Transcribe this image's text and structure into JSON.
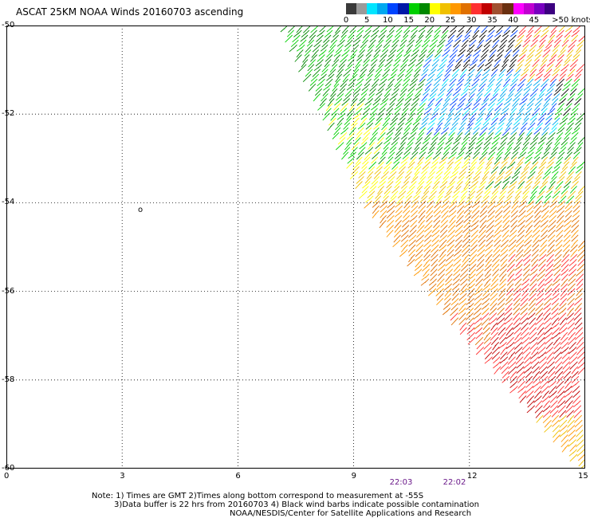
{
  "title": "ASCAT 25KM NOAA Winds 20160703 ascending",
  "legend": {
    "colors": [
      "#3a3a3a",
      "#9a9a9a",
      "#00e5ff",
      "#00a8f0",
      "#0044ff",
      "#0018a8",
      "#00d000",
      "#008800",
      "#ffff00",
      "#f0c000",
      "#ff9800",
      "#e07000",
      "#ff3030",
      "#c00000",
      "#a05030",
      "#6a2f10",
      "#ff00ff",
      "#c000d0",
      "#7800c0",
      "#3c0080"
    ],
    "labels": [
      "0",
      "5",
      "10",
      "15",
      "20",
      "25",
      "30",
      "35",
      "40",
      "45",
      ">50 knots"
    ]
  },
  "axes": {
    "lat_labels": [
      "-50",
      "-52",
      "-54",
      "-56",
      "-58",
      "-60"
    ],
    "lon_labels": [
      "0",
      "3",
      "6",
      "9",
      "12",
      "15"
    ]
  },
  "times": [
    "22:03",
    "22:02"
  ],
  "notes": [
    "Note: 1) Times are GMT 2)Times along bottom correspond to measurement at -55S",
    "3)Data buffer is 22 hrs from 20160703 4) Black wind barbs indicate possible contamination",
    "NOAA/NESDIS/Center for Satellite Applications and Research"
  ],
  "map_data": {
    "lon_range": [
      0,
      15
    ],
    "lat_range": [
      -60,
      -50
    ],
    "island_label": "o",
    "swath_edge_lonlat": [
      [
        7.2,
        -50.0
      ],
      [
        9.4,
        -54.0
      ],
      [
        11.5,
        -56.5
      ],
      [
        15.0,
        -60.0
      ]
    ],
    "wind_zones": [
      {
        "speed_knots": "25-35",
        "region": "south / southeast of -54"
      },
      {
        "speed_knots": "20-25",
        "region": "band near -53 to -54"
      },
      {
        "speed_knots": "15-20",
        "region": "north-west of swath, -50 to -53"
      },
      {
        "speed_knots": "10-15",
        "region": "north-east near -51 to -52"
      },
      {
        "speed_knots": ">30",
        "region": "far south-east -56 to -59"
      }
    ]
  }
}
